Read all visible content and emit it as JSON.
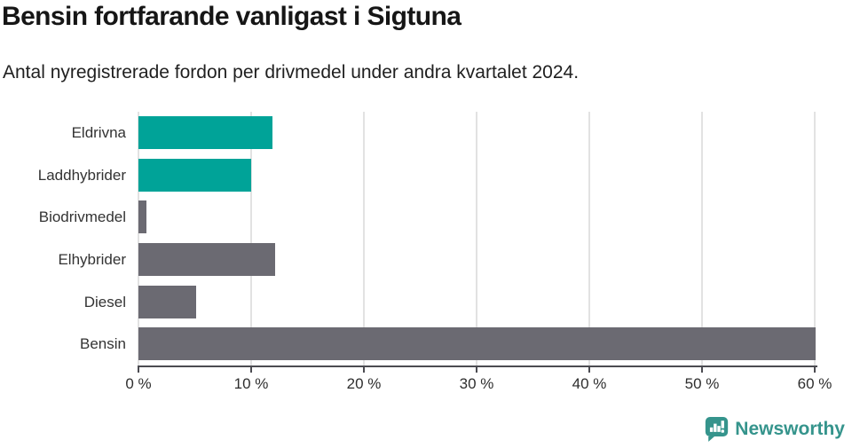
{
  "header": {
    "title": "Bensin fortfarande vanligast i Sigtuna",
    "subtitle": "Antal nyregistrerade fordon per drivmedel under andra kvartalet 2024."
  },
  "chart_data": {
    "type": "bar",
    "orientation": "horizontal",
    "title": "Bensin fortfarande vanligast i Sigtuna",
    "subtitle": "Antal nyregistrerade fordon per drivmedel under andra kvartalet 2024.",
    "categories": [
      "Eldrivna",
      "Laddhybrider",
      "Biodrivmedel",
      "Elhybrider",
      "Diesel",
      "Bensin"
    ],
    "values": [
      11.9,
      10.0,
      0.7,
      12.1,
      5.1,
      60.1
    ],
    "unit": "%",
    "bar_colors": [
      "#00a398",
      "#00a398",
      "#6b6a72",
      "#6b6a72",
      "#6b6a72",
      "#6b6a72"
    ],
    "x_ticks": [
      0,
      10,
      20,
      30,
      40,
      50,
      60
    ],
    "x_tick_labels": [
      "0 %",
      "10 %",
      "20 %",
      "30 %",
      "40 %",
      "50 %",
      "60 %"
    ],
    "xlim": [
      0,
      60.2
    ],
    "xlabel": "",
    "ylabel": "",
    "grid": true,
    "legend": "none"
  },
  "colors": {
    "teal": "#00a398",
    "gray": "#6b6a72",
    "gridline": "#e2e2e2",
    "axis": "#4b4b51",
    "logo": "#35948c"
  },
  "footer": {
    "brand": "Newsworthy",
    "logo_icon": "bar-chart-speech-bubble-icon"
  }
}
